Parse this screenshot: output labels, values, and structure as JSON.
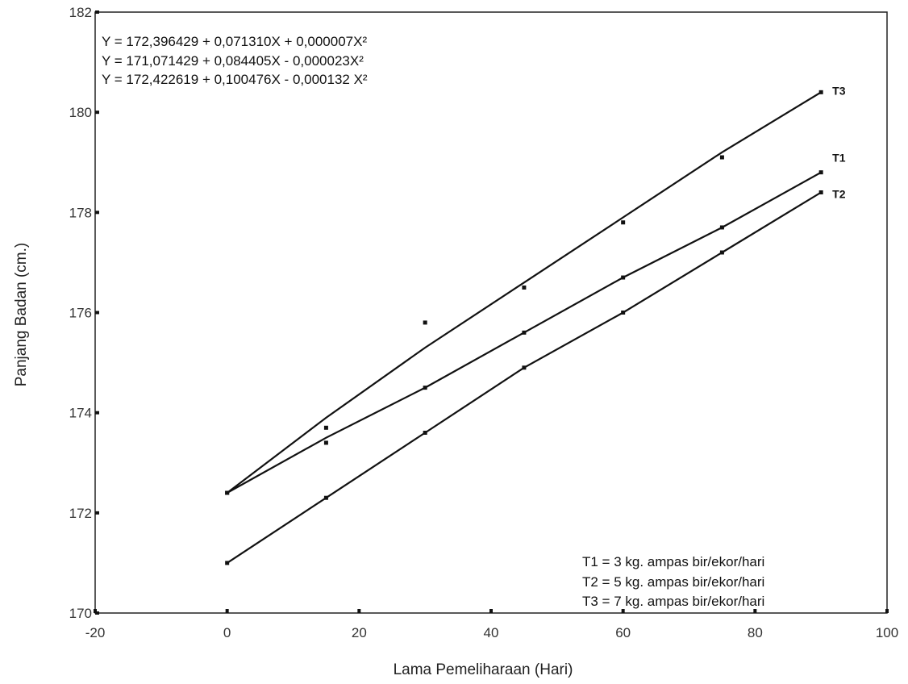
{
  "chart_data": {
    "type": "line",
    "xlabel": "Lama Pemeliharaan (Hari)",
    "ylabel": "Panjang Badan (cm.)",
    "xlim": [
      -20,
      100
    ],
    "ylim": [
      170,
      182
    ],
    "x_ticks": [
      -20,
      0,
      20,
      40,
      60,
      80,
      100
    ],
    "y_ticks": [
      170,
      172,
      174,
      176,
      178,
      180,
      182
    ],
    "equations": [
      "Y = 172,396429 + 0,071310X + 0,000007X²",
      "Y = 171,071429 + 0,084405X - 0,000023X²",
      "Y = 172,422619 + 0,100476X - 0,000132 X²"
    ],
    "legend": [
      "T1  =  3 kg. ampas bir/ekor/hari",
      "T2  =  5 kg. ampas bir/ekor/hari",
      "T3  =  7 kg. ampas bir/ekor/hari"
    ],
    "legend_position": "bottom-right",
    "grid": false,
    "series": [
      {
        "name": "T1",
        "x": [
          0,
          15,
          30,
          45,
          60,
          75,
          90
        ],
        "points": [
          172.4,
          173.4,
          174.5,
          175.6,
          176.7,
          177.7,
          178.8
        ],
        "line": [
          172.4,
          173.5,
          174.5,
          175.6,
          176.7,
          177.7,
          178.8
        ]
      },
      {
        "name": "T2",
        "x": [
          0,
          15,
          30,
          45,
          60,
          75,
          90
        ],
        "points": [
          171.0,
          172.3,
          173.6,
          174.9,
          176.0,
          177.2,
          178.4
        ],
        "line": [
          171.0,
          172.3,
          173.6,
          174.9,
          176.0,
          177.2,
          178.4
        ]
      },
      {
        "name": "T3",
        "x": [
          0,
          15,
          30,
          45,
          60,
          75,
          90
        ],
        "points": [
          172.4,
          173.7,
          175.8,
          176.5,
          177.8,
          179.1,
          180.4
        ],
        "line": [
          172.4,
          173.9,
          175.3,
          176.6,
          177.9,
          179.2,
          180.4
        ]
      }
    ]
  }
}
